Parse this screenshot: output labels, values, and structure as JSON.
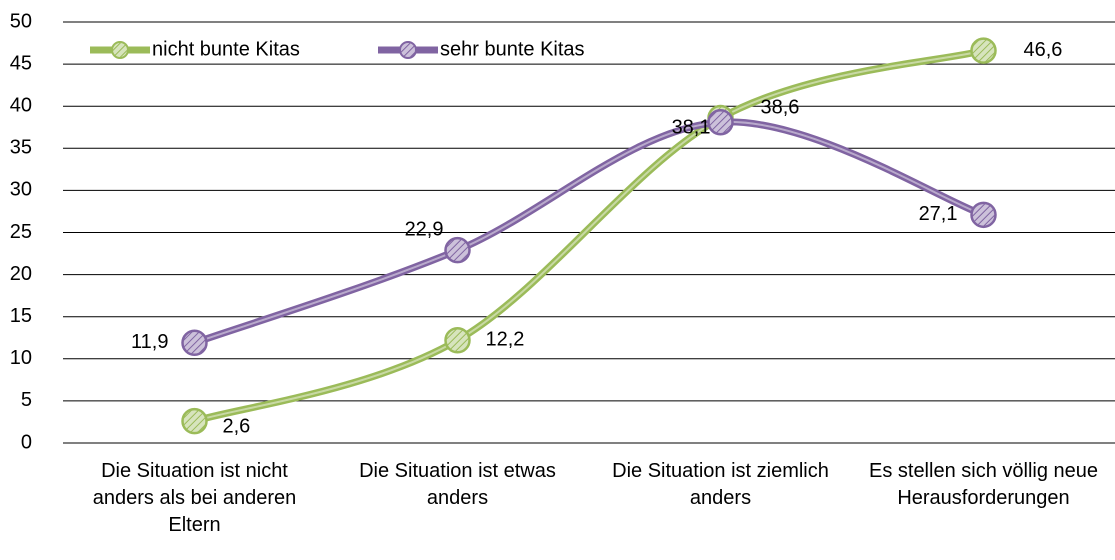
{
  "chart_data": {
    "type": "line",
    "categories": [
      "Die Situation ist nicht anders als bei anderen Eltern",
      "Die Situation ist etwas anders",
      "Die Situation ist ziemlich anders",
      "Es stellen sich völlig neue Herausforderungen"
    ],
    "series": [
      {
        "name": "nicht bunte Kitas",
        "color": "#9bbb59",
        "values": [
          2.6,
          12.2,
          38.6,
          46.6
        ],
        "value_labels": [
          "2,6",
          "12,2",
          "38,6",
          "46,6"
        ]
      },
      {
        "name": "sehr bunte Kitas",
        "color": "#8064a2",
        "values": [
          11.9,
          22.9,
          38.1,
          27.1
        ],
        "value_labels": [
          "11,9",
          "22,9",
          "38,1",
          "27,1"
        ]
      }
    ],
    "ylim": [
      0,
      50
    ],
    "yticks": [
      0,
      5,
      10,
      15,
      20,
      25,
      30,
      35,
      40,
      45,
      50
    ],
    "grid": true,
    "smooth": true,
    "legend": "upper left"
  }
}
